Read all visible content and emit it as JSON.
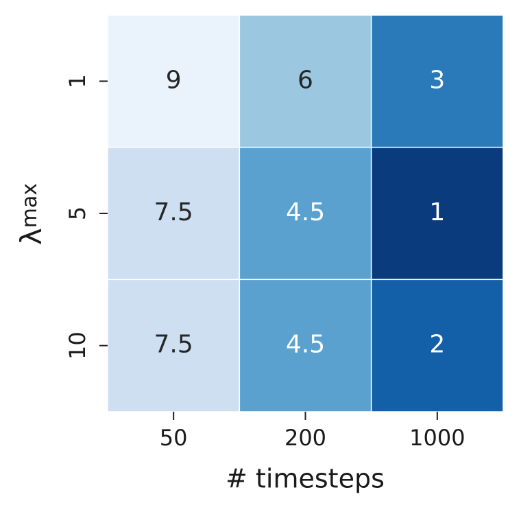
{
  "chart_data": {
    "type": "heatmap",
    "xlabel": "# timesteps",
    "ylabel": {
      "symbol": "λ",
      "subscript": "max"
    },
    "x_categories": [
      "50",
      "200",
      "1000"
    ],
    "y_categories": [
      "1",
      "5",
      "10"
    ],
    "values": [
      [
        9,
        6,
        3
      ],
      [
        7.5,
        4.5,
        1
      ],
      [
        7.5,
        4.5,
        2
      ]
    ],
    "colors": [
      [
        "#eaf3fb",
        "#9cc7e0",
        "#2a7ab9"
      ],
      [
        "#cddff1",
        "#5aa1cf",
        "#0a3b7c"
      ],
      [
        "#cddff1",
        "#5aa1cf",
        "#1460a8"
      ]
    ]
  }
}
